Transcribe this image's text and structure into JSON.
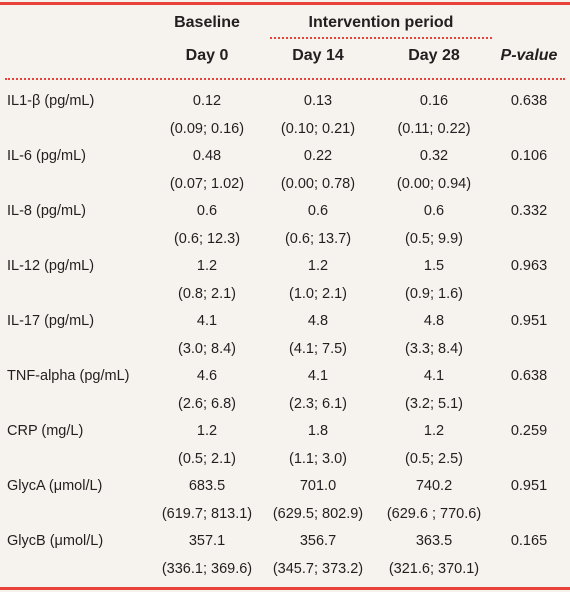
{
  "header": {
    "baseline": "Baseline",
    "intervention": "Intervention period",
    "day0": "Day 0",
    "day14": "Day 14",
    "day28": "Day 28",
    "pvalue": "P-value"
  },
  "rows": [
    {
      "label": "IL1-β (pg/mL)",
      "d0": "0.12",
      "d14": "0.13",
      "d28": "0.16",
      "p": "0.638",
      "d0ci": "(0.09; 0.16)",
      "d14ci": "(0.10; 0.21)",
      "d28ci": "(0.11; 0.22)"
    },
    {
      "label": "IL-6 (pg/mL)",
      "d0": "0.48",
      "d14": "0.22",
      "d28": "0.32",
      "p": "0.106",
      "d0ci": "(0.07; 1.02)",
      "d14ci": "(0.00; 0.78)",
      "d28ci": "(0.00; 0.94)"
    },
    {
      "label": "IL-8 (pg/mL)",
      "d0": "0.6",
      "d14": "0.6",
      "d28": "0.6",
      "p": "0.332",
      "d0ci": "(0.6; 12.3)",
      "d14ci": "(0.6; 13.7)",
      "d28ci": "(0.5; 9.9)"
    },
    {
      "label": "IL-12 (pg/mL)",
      "d0": "1.2",
      "d14": "1.2",
      "d28": "1.5",
      "p": "0.963",
      "d0ci": "(0.8; 2.1)",
      "d14ci": "(1.0; 2.1)",
      "d28ci": "(0.9; 1.6)"
    },
    {
      "label": "IL-17 (pg/mL)",
      "d0": "4.1",
      "d14": "4.8",
      "d28": "4.8",
      "p": "0.951",
      "d0ci": "(3.0; 8.4)",
      "d14ci": "(4.1; 7.5)",
      "d28ci": "(3.3; 8.4)"
    },
    {
      "label": "TNF-alpha (pg/mL)",
      "d0": "4.6",
      "d14": "4.1",
      "d28": "4.1",
      "p": "0.638",
      "d0ci": "(2.6; 6.8)",
      "d14ci": "(2.3; 6.1)",
      "d28ci": "(3.2; 5.1)"
    },
    {
      "label": "CRP (mg/L)",
      "d0": "1.2",
      "d14": "1.8",
      "d28": "1.2",
      "p": "0.259",
      "d0ci": "(0.5; 2.1)",
      "d14ci": "(1.1; 3.0)",
      "d28ci": "(0.5; 2.5)"
    },
    {
      "label": "GlycA (μmol/L)",
      "d0": "683.5",
      "d14": "701.0",
      "d28": "740.2",
      "p": "0.951",
      "d0ci": "(619.7; 813.1)",
      "d14ci": "(629.5; 802.9)",
      "d28ci": "(629.6 ; 770.6)"
    },
    {
      "label": "GlycB (μmol/L)",
      "d0": "357.1",
      "d14": "356.7",
      "d28": "363.5",
      "p": "0.165",
      "d0ci": "(336.1; 369.6)",
      "d14ci": "(345.7; 373.2)",
      "d28ci": "(321.6; 370.1)"
    }
  ]
}
